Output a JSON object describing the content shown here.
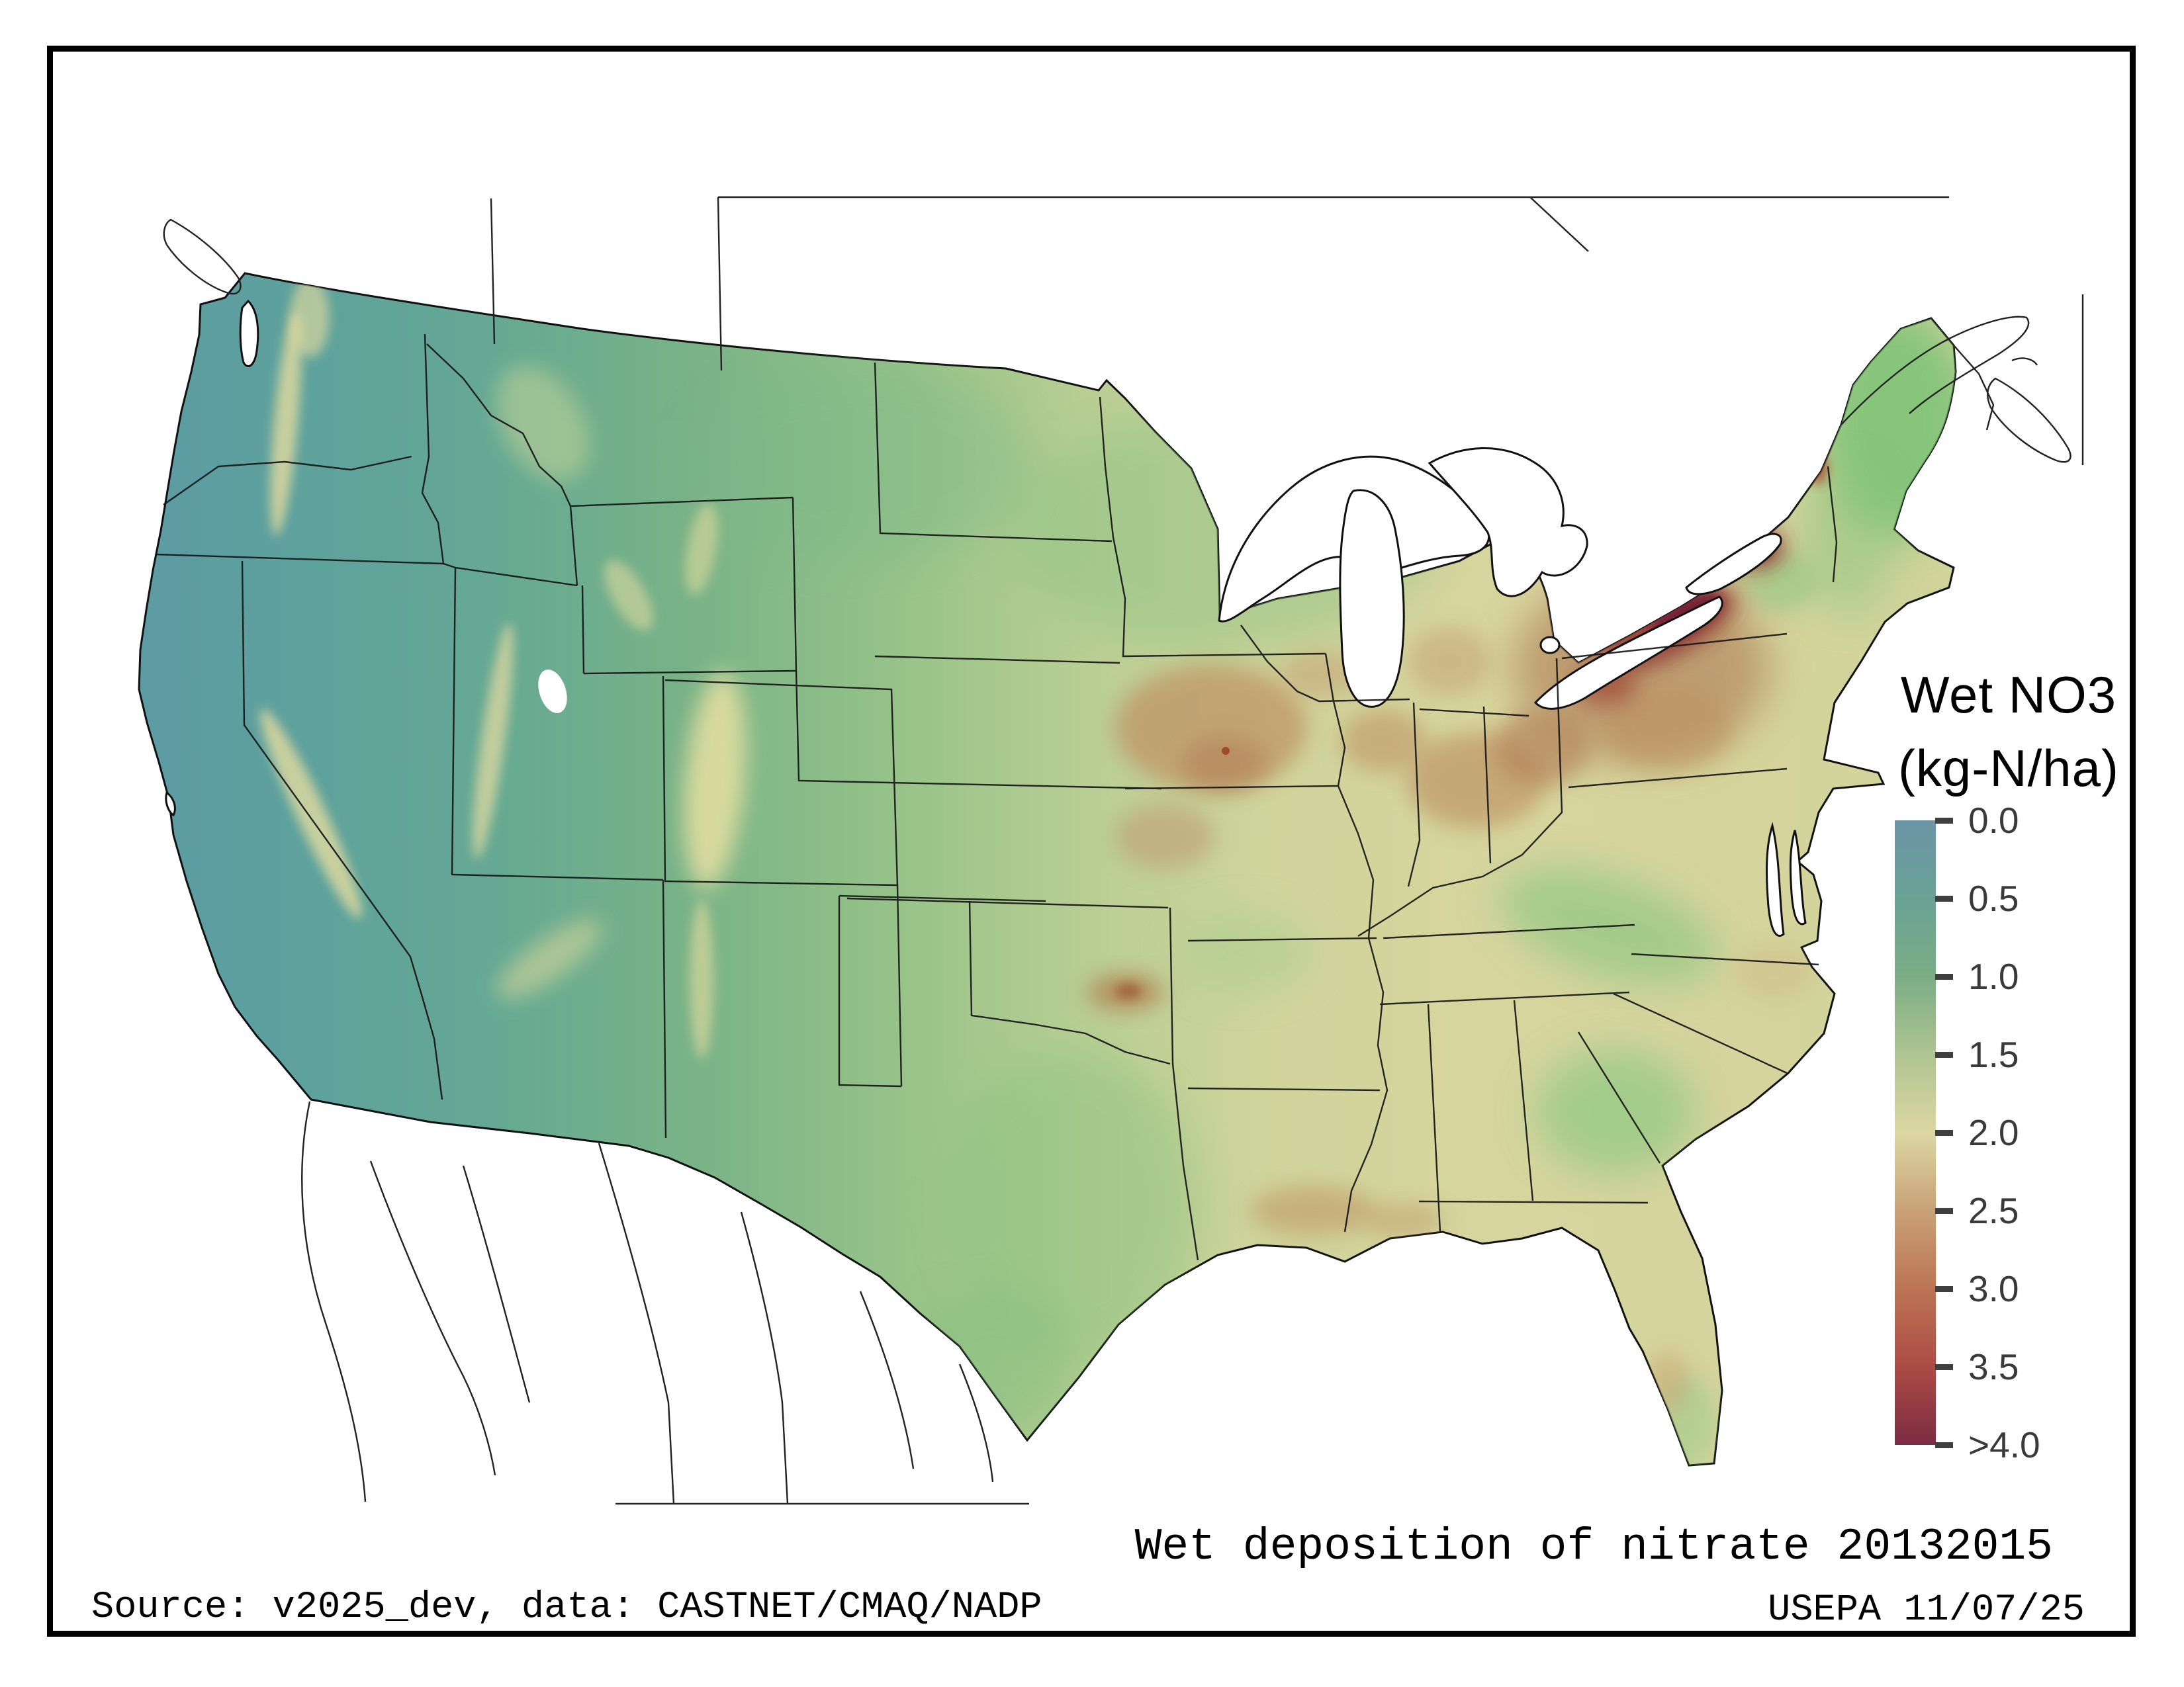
{
  "legend": {
    "title_line1": "Wet NO3",
    "title_line2": "(kg-N/ha)",
    "ticks": [
      "0.0",
      "0.5",
      "1.0",
      "1.5",
      "2.0",
      "2.5",
      "3.0",
      "3.5",
      ">4.0"
    ],
    "tick_color": "#3f3f3f",
    "stops": [
      {
        "value": 0.0,
        "color": "#6D94A7"
      },
      {
        "value": 0.5,
        "color": "#69A295"
      },
      {
        "value": 1.0,
        "color": "#7BAD85"
      },
      {
        "value": 1.5,
        "color": "#AFC492"
      },
      {
        "value": 2.0,
        "color": "#DCD7A2"
      },
      {
        "value": 2.5,
        "color": "#C9A177"
      },
      {
        "value": 3.0,
        "color": "#BC7454"
      },
      {
        "value": 3.5,
        "color": "#AC4B45"
      },
      {
        "value": 4.0,
        "color": "#7C2B43"
      }
    ]
  },
  "captions": {
    "map_title": "Wet deposition of nitrate 20132015",
    "source": "Source: v2025_dev, data: CASTNET/CMAQ/NADP",
    "agency_date": "USEPA 11/07/25"
  },
  "chart_data": {
    "type": "heatmap",
    "title": "Wet deposition of nitrate 20132015",
    "map_area": "Contiguous United States",
    "variable": "Wet NO3 deposition",
    "units": "kg-N/ha",
    "period": "20132015",
    "legend_title": "Wet NO3 (kg-N/ha)",
    "scale_range": [
      0,
      4
    ],
    "scale_open_ended_top": true,
    "scale_ticks": [
      0.0,
      0.5,
      1.0,
      1.5,
      2.0,
      2.5,
      3.0,
      3.5,
      4.0
    ],
    "colorbar_stops": [
      {
        "value": 0.0,
        "color": "#6D94A7"
      },
      {
        "value": 0.5,
        "color": "#69A295"
      },
      {
        "value": 1.0,
        "color": "#7BAD85"
      },
      {
        "value": 1.5,
        "color": "#AFC492"
      },
      {
        "value": 2.0,
        "color": "#DCD7A2"
      },
      {
        "value": 2.5,
        "color": "#C9A177"
      },
      {
        "value": 3.0,
        "color": "#BC7454"
      },
      {
        "value": 3.5,
        "color": "#AC4B45"
      },
      {
        "value": 4.0,
        "color": "#7C2B43"
      }
    ],
    "regions_estimated_values": [
      {
        "region": "Pacific Northwest / Washington-Oregon",
        "value_kg_n_ha": 0.5
      },
      {
        "region": "California Central Valley and coast",
        "value_kg_n_ha": 0.5
      },
      {
        "region": "Great Basin / Nevada / Utah",
        "value_kg_n_ha": 0.6
      },
      {
        "region": "Rocky Mountain ridges (CO/UT/WY highlands)",
        "value_kg_n_ha": 1.8
      },
      {
        "region": "Montana / northern plains",
        "value_kg_n_ha": 0.9
      },
      {
        "region": "Minnesota / upper Midwest",
        "value_kg_n_ha": 1.3
      },
      {
        "region": "Nebraska / Kansas central plains",
        "value_kg_n_ha": 1.5
      },
      {
        "region": "Iowa corn belt (brown patches)",
        "value_kg_n_ha": 2.5
      },
      {
        "region": "Illinois / Indiana / Ohio valley",
        "value_kg_n_ha": 2.4
      },
      {
        "region": "Lake Erie south shore (NW PA / W NY) hotspot",
        "value_kg_n_ha": 4.0
      },
      {
        "region": "East of Lake Ontario (Tug Hill NY) hotspot",
        "value_kg_n_ha": 3.8
      },
      {
        "region": "Pennsylvania highlands",
        "value_kg_n_ha": 2.3
      },
      {
        "region": "Oklahoma hotspot",
        "value_kg_n_ha": 2.8
      },
      {
        "region": "Texas",
        "value_kg_n_ha": 1.2
      },
      {
        "region": "Gulf coast Louisiana / Mississippi",
        "value_kg_n_ha": 2.0
      },
      {
        "region": "Appalachians WV/VA/NC (green band)",
        "value_kg_n_ha": 1.0
      },
      {
        "region": "Georgia / South Carolina",
        "value_kg_n_ha": 1.1
      },
      {
        "region": "Florida peninsula",
        "value_kg_n_ha": 1.7
      },
      {
        "region": "Maine / northern New England",
        "value_kg_n_ha": 1.0
      },
      {
        "region": "Northern Vermont hotspot",
        "value_kg_n_ha": 3.0
      }
    ],
    "layout": {
      "colorbar_position": "right",
      "grid": false,
      "no_data_color": "#ffffff"
    }
  }
}
